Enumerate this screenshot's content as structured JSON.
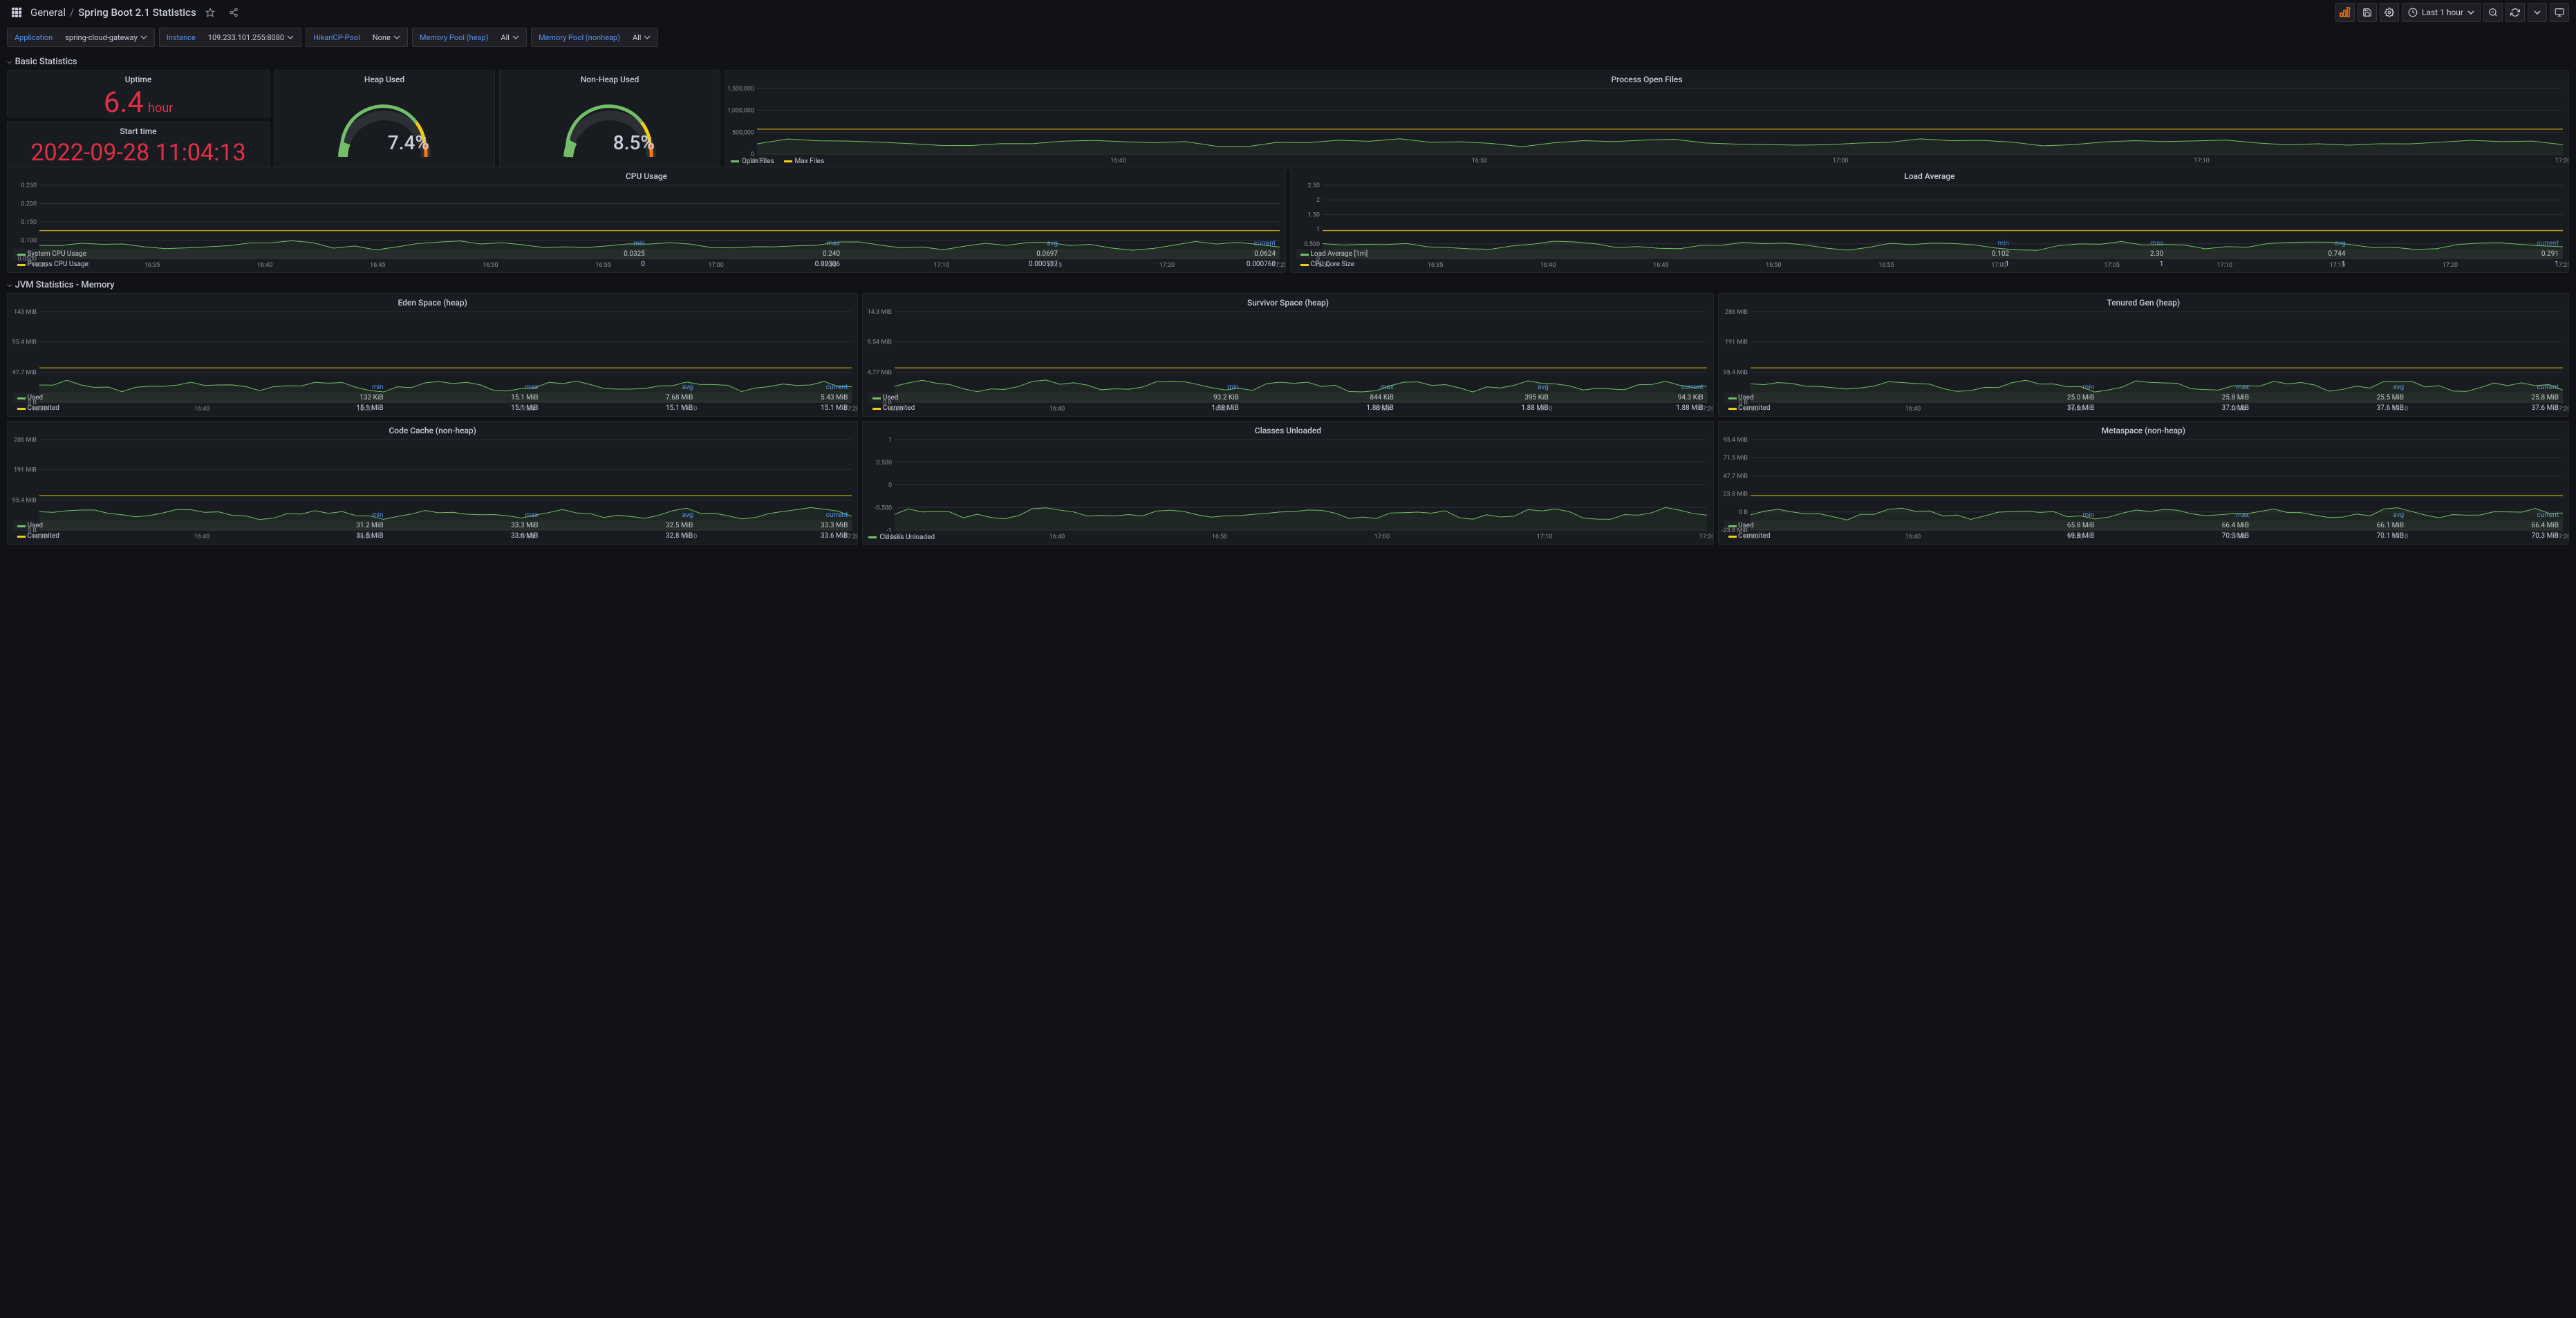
{
  "header": {
    "folder": "General",
    "title": "Spring Boot 2.1 Statistics",
    "time_range": "Last 1 hour"
  },
  "variables": {
    "application_label": "Application",
    "application_value": "spring-cloud-gateway",
    "instance_label": "Instance",
    "instance_value": "109.233.101.255:8080",
    "hikari_label": "HikariCP-Pool",
    "hikari_value": "None",
    "heap_label": "Memory Pool (heap)",
    "heap_value": "All",
    "nonheap_label": "Memory Pool (nonheap)",
    "nonheap_value": "All"
  },
  "sections": {
    "basic": "Basic Statistics",
    "jvm": "JVM Statistics - Memory"
  },
  "uptime": {
    "title": "Uptime",
    "value": "6.4",
    "unit": "hour"
  },
  "start_time": {
    "title": "Start time",
    "value": "2022-09-28 11:04:13"
  },
  "heap_gauge": {
    "title": "Heap Used",
    "pct": "7.4%"
  },
  "nonheap_gauge": {
    "title": "Non-Heap Used",
    "pct": "8.5%"
  },
  "open_files": {
    "title": "Process Open Files",
    "yticks": [
      "0",
      "500,000",
      "1,000,000",
      "1,500,000"
    ],
    "xticks": [
      "16:30",
      "16:40",
      "16:50",
      "17:00",
      "17:10",
      "17:20"
    ],
    "legend": [
      {
        "color": "#73bf69",
        "label": "Open Files"
      },
      {
        "color": "#f2cc0c",
        "label": "Max Files"
      }
    ]
  },
  "cpu_usage": {
    "title": "CPU Usage",
    "yticks": [
      "0.0500",
      "0.100",
      "0.150",
      "0.200",
      "0.250"
    ],
    "xticks": [
      "16:30",
      "16:35",
      "16:40",
      "16:45",
      "16:50",
      "16:55",
      "17:00",
      "17:05",
      "17:10",
      "17:15",
      "17:20",
      "17:25"
    ],
    "headers": [
      "",
      "min",
      "max",
      "avg",
      "current"
    ],
    "rows": [
      {
        "color": "#73bf69",
        "name": "System CPU Usage",
        "v": [
          "0.0325",
          "0.240",
          "0.0697",
          "0.0624"
        ]
      },
      {
        "color": "#f2cc0c",
        "name": "Process CPU Usage",
        "v": [
          "0",
          "0.00306",
          "0.000537",
          "0.000760"
        ]
      }
    ]
  },
  "load_avg": {
    "title": "Load Average",
    "yticks": [
      "0",
      "0.500",
      "1",
      "1.50",
      "2",
      "2.50"
    ],
    "xticks": [
      "16:30",
      "16:35",
      "16:40",
      "16:45",
      "16:50",
      "16:55",
      "17:00",
      "17:05",
      "17:10",
      "17:15",
      "17:20",
      "17:25"
    ],
    "headers": [
      "",
      "min",
      "max",
      "avg",
      "current"
    ],
    "rows": [
      {
        "color": "#73bf69",
        "name": "Load Average [1m]",
        "v": [
          "0.102",
          "2.30",
          "0.744",
          "0.291"
        ]
      },
      {
        "color": "#f2cc0c",
        "name": "CPU Core Size",
        "v": [
          "1",
          "1",
          "1",
          "1"
        ]
      }
    ]
  },
  "eden": {
    "title": "Eden Space (heap)",
    "yticks": [
      "0 B",
      "47.7 MiB",
      "95.4 MiB",
      "143 MiB"
    ],
    "xticks": [
      "16:30",
      "16:40",
      "16:50",
      "17:00",
      "17:10",
      "17:20"
    ],
    "headers": [
      "",
      "min",
      "max",
      "avg",
      "current"
    ],
    "rows": [
      {
        "color": "#73bf69",
        "name": "Used",
        "v": [
          "132 KiB",
          "15.1 MiB",
          "7.68 MiB",
          "5.43 MiB"
        ]
      },
      {
        "color": "#f2cc0c",
        "name": "Commited",
        "v": [
          "15.1 MiB",
          "15.1 MiB",
          "15.1 MiB",
          "15.1 MiB"
        ]
      }
    ]
  },
  "survivor": {
    "title": "Survivor Space (heap)",
    "yticks": [
      "0 B",
      "4.77 MiB",
      "9.54 MiB",
      "14.3 MiB"
    ],
    "xticks": [
      "16:30",
      "16:40",
      "16:50",
      "17:00",
      "17:10",
      "17:20"
    ],
    "headers": [
      "",
      "min",
      "max",
      "avg",
      "current"
    ],
    "rows": [
      {
        "color": "#73bf69",
        "name": "Used",
        "v": [
          "93.2 KiB",
          "844 KiB",
          "395 KiB",
          "94.3 KiB"
        ]
      },
      {
        "color": "#f2cc0c",
        "name": "Commited",
        "v": [
          "1.88 MiB",
          "1.88 MiB",
          "1.88 MiB",
          "1.88 MiB"
        ]
      }
    ]
  },
  "tenured": {
    "title": "Tenured Gen (heap)",
    "yticks": [
      "0 B",
      "95.4 MiB",
      "191 MiB",
      "286 MiB"
    ],
    "xticks": [
      "16:30",
      "16:40",
      "16:50",
      "17:00",
      "17:10",
      "17:20"
    ],
    "headers": [
      "",
      "min",
      "max",
      "avg",
      "current"
    ],
    "rows": [
      {
        "color": "#73bf69",
        "name": "Used",
        "v": [
          "25.0 MiB",
          "25.8 MiB",
          "25.5 MiB",
          "25.8 MiB"
        ]
      },
      {
        "color": "#f2cc0c",
        "name": "Commited",
        "v": [
          "37.6 MiB",
          "37.6 MiB",
          "37.6 MiB",
          "37.6 MiB"
        ]
      }
    ]
  },
  "codecache": {
    "title": "Code Cache (non-heap)",
    "yticks": [
      "0 B",
      "95.4 MiB",
      "191 MiB",
      "286 MiB"
    ],
    "xticks": [
      "16:30",
      "16:40",
      "16:50",
      "17:00",
      "17:10",
      "17:20"
    ],
    "headers": [
      "",
      "min",
      "max",
      "avg",
      "current"
    ],
    "rows": [
      {
        "color": "#73bf69",
        "name": "Used",
        "v": [
          "31.2 MiB",
          "33.3 MiB",
          "32.5 MiB",
          "33.3 MiB"
        ]
      },
      {
        "color": "#f2cc0c",
        "name": "Commited",
        "v": [
          "31.5 MiB",
          "33.6 MiB",
          "32.8 MiB",
          "33.6 MiB"
        ]
      }
    ]
  },
  "classes_unloaded": {
    "title": "Classes Unloaded",
    "yticks": [
      "-1",
      "-0.500",
      "0",
      "0.500",
      "1"
    ],
    "xticks": [
      "16:30",
      "16:40",
      "16:50",
      "17:00",
      "17:10",
      "17:20"
    ],
    "legend": [
      {
        "color": "#73bf69",
        "label": "Classes Unloaded"
      }
    ]
  },
  "metaspace": {
    "title": "Metaspace (non-heap)",
    "yticks": [
      "-23.8 MiB",
      "0 B",
      "23.8 MiB",
      "47.7 MiB",
      "71.5 MiB",
      "95.4 MiB"
    ],
    "xticks": [
      "16:30",
      "16:40",
      "16:50",
      "17:00",
      "17:10",
      "17:20"
    ],
    "headers": [
      "",
      "min",
      "max",
      "avg",
      "current"
    ],
    "rows": [
      {
        "color": "#73bf69",
        "name": "Used",
        "v": [
          "65.8 MiB",
          "66.4 MiB",
          "66.1 MiB",
          "66.4 MiB"
        ]
      },
      {
        "color": "#f2cc0c",
        "name": "Commited",
        "v": [
          "69.8 MiB",
          "70.3 MiB",
          "70.1 MiB",
          "70.3 MiB"
        ]
      }
    ]
  },
  "colors": {
    "green": "#73bf69",
    "yellow": "#f2cc0c",
    "red": "#e02f44",
    "orange": "#ff780a",
    "cyan": "#5794f2",
    "grid": "#2c2f34",
    "text": "#ccccdc",
    "muted": "#8e8e96"
  }
}
